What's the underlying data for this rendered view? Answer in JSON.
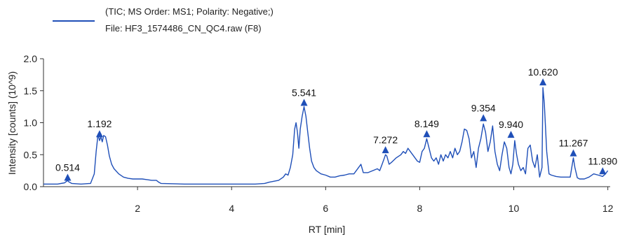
{
  "chart_data": {
    "type": "line",
    "legend": {
      "line1": "(TIC; MS Order: MS1; Polarity: Negative;)",
      "line2": "File: HF3_1574486_CN_QC4.raw (F8)"
    },
    "xlabel": "RT [min]",
    "ylabel": "Intensity [counts] (10^9)",
    "xlim": [
      0,
      12.05
    ],
    "ylim": [
      0,
      2.0
    ],
    "x_ticks": [
      2,
      4,
      6,
      8,
      10,
      12
    ],
    "x_tick_labels": [
      "2",
      "4",
      "6",
      "8",
      "10",
      "12"
    ],
    "y_ticks": [
      0,
      0.5,
      1.0,
      1.5,
      2.0
    ],
    "y_tick_labels": [
      "0.0",
      "0.5",
      "1.0",
      "1.5",
      "2.0"
    ],
    "line_color": "#1f4fb8",
    "grid": false,
    "legend_position": "top-left",
    "peaks": [
      {
        "rt": 0.514,
        "label": "0.514",
        "intensity": 0.17
      },
      {
        "rt": 1.192,
        "label": "1.192",
        "intensity": 0.85
      },
      {
        "rt": 5.541,
        "label": "5.541",
        "intensity": 1.34
      },
      {
        "rt": 7.272,
        "label": "7.272",
        "intensity": 0.6
      },
      {
        "rt": 8.149,
        "label": "8.149",
        "intensity": 0.85
      },
      {
        "rt": 9.354,
        "label": "9.354",
        "intensity": 1.1
      },
      {
        "rt": 9.94,
        "label": "9.940",
        "intensity": 0.84
      },
      {
        "rt": 10.62,
        "label": "10.620",
        "intensity": 1.66
      },
      {
        "rt": 11.267,
        "label": "11.267",
        "intensity": 0.55
      },
      {
        "rt": 11.89,
        "label": "11.890",
        "intensity": 0.27
      }
    ],
    "series": [
      {
        "x": [
          0.0,
          0.3,
          0.45,
          0.5,
          0.514,
          0.53,
          0.6,
          0.8,
          1.0,
          1.08,
          1.12,
          1.16,
          1.192,
          1.22,
          1.25,
          1.28,
          1.32,
          1.36,
          1.4,
          1.45,
          1.5,
          1.6,
          1.7,
          1.8,
          1.9,
          2.0,
          2.1,
          2.2,
          2.3,
          2.4,
          2.45,
          2.5,
          3.0,
          3.5,
          4.0,
          4.5,
          4.7,
          4.8,
          5.0,
          5.1,
          5.15,
          5.2,
          5.25,
          5.3,
          5.34,
          5.37,
          5.4,
          5.43,
          5.46,
          5.5,
          5.541,
          5.58,
          5.62,
          5.66,
          5.7,
          5.75,
          5.8,
          5.9,
          6.0,
          6.1,
          6.2,
          6.3,
          6.4,
          6.5,
          6.6,
          6.7,
          6.75,
          6.8,
          6.9,
          7.0,
          7.1,
          7.15,
          7.2,
          7.25,
          7.272,
          7.3,
          7.35,
          7.4,
          7.5,
          7.6,
          7.65,
          7.7,
          7.75,
          7.8,
          7.85,
          7.9,
          7.95,
          8.0,
          8.05,
          8.1,
          8.149,
          8.2,
          8.25,
          8.3,
          8.35,
          8.4,
          8.45,
          8.5,
          8.55,
          8.6,
          8.65,
          8.7,
          8.75,
          8.8,
          8.85,
          8.9,
          8.95,
          9.0,
          9.05,
          9.1,
          9.15,
          9.2,
          9.25,
          9.3,
          9.354,
          9.4,
          9.45,
          9.5,
          9.55,
          9.6,
          9.65,
          9.7,
          9.75,
          9.8,
          9.85,
          9.9,
          9.94,
          9.98,
          10.02,
          10.06,
          10.1,
          10.15,
          10.2,
          10.25,
          10.3,
          10.35,
          10.4,
          10.45,
          10.5,
          10.55,
          10.6,
          10.62,
          10.65,
          10.7,
          10.75,
          10.8,
          10.9,
          11.0,
          11.1,
          11.2,
          11.267,
          11.3,
          11.35,
          11.4,
          11.5,
          11.6,
          11.7,
          11.8,
          11.89,
          11.95,
          12.0
        ],
        "y": [
          0.04,
          0.04,
          0.06,
          0.09,
          0.1,
          0.08,
          0.05,
          0.04,
          0.05,
          0.2,
          0.55,
          0.82,
          0.72,
          0.78,
          0.7,
          0.8,
          0.78,
          0.65,
          0.48,
          0.35,
          0.28,
          0.2,
          0.15,
          0.13,
          0.12,
          0.12,
          0.12,
          0.11,
          0.1,
          0.1,
          0.07,
          0.05,
          0.04,
          0.04,
          0.04,
          0.04,
          0.05,
          0.07,
          0.1,
          0.15,
          0.2,
          0.18,
          0.3,
          0.5,
          0.9,
          1.0,
          0.85,
          0.6,
          0.9,
          1.1,
          1.25,
          1.1,
          0.85,
          0.6,
          0.4,
          0.3,
          0.25,
          0.2,
          0.18,
          0.15,
          0.15,
          0.17,
          0.18,
          0.2,
          0.2,
          0.3,
          0.35,
          0.22,
          0.22,
          0.25,
          0.28,
          0.25,
          0.35,
          0.45,
          0.5,
          0.48,
          0.35,
          0.38,
          0.45,
          0.5,
          0.55,
          0.52,
          0.6,
          0.55,
          0.5,
          0.45,
          0.4,
          0.38,
          0.55,
          0.6,
          0.75,
          0.6,
          0.45,
          0.4,
          0.45,
          0.35,
          0.5,
          0.4,
          0.5,
          0.45,
          0.55,
          0.45,
          0.6,
          0.5,
          0.55,
          0.7,
          0.9,
          0.88,
          0.75,
          0.45,
          0.55,
          0.3,
          0.6,
          0.75,
          0.98,
          0.85,
          0.55,
          0.7,
          0.95,
          0.55,
          0.35,
          0.25,
          0.5,
          0.7,
          0.6,
          0.3,
          0.2,
          0.35,
          0.72,
          0.5,
          0.35,
          0.25,
          0.3,
          0.2,
          0.6,
          0.65,
          0.4,
          0.3,
          0.5,
          0.15,
          0.3,
          1.55,
          1.3,
          0.55,
          0.2,
          0.18,
          0.16,
          0.15,
          0.15,
          0.15,
          0.45,
          0.3,
          0.14,
          0.12,
          0.12,
          0.15,
          0.2,
          0.18,
          0.16,
          0.2,
          0.25
        ]
      }
    ]
  }
}
